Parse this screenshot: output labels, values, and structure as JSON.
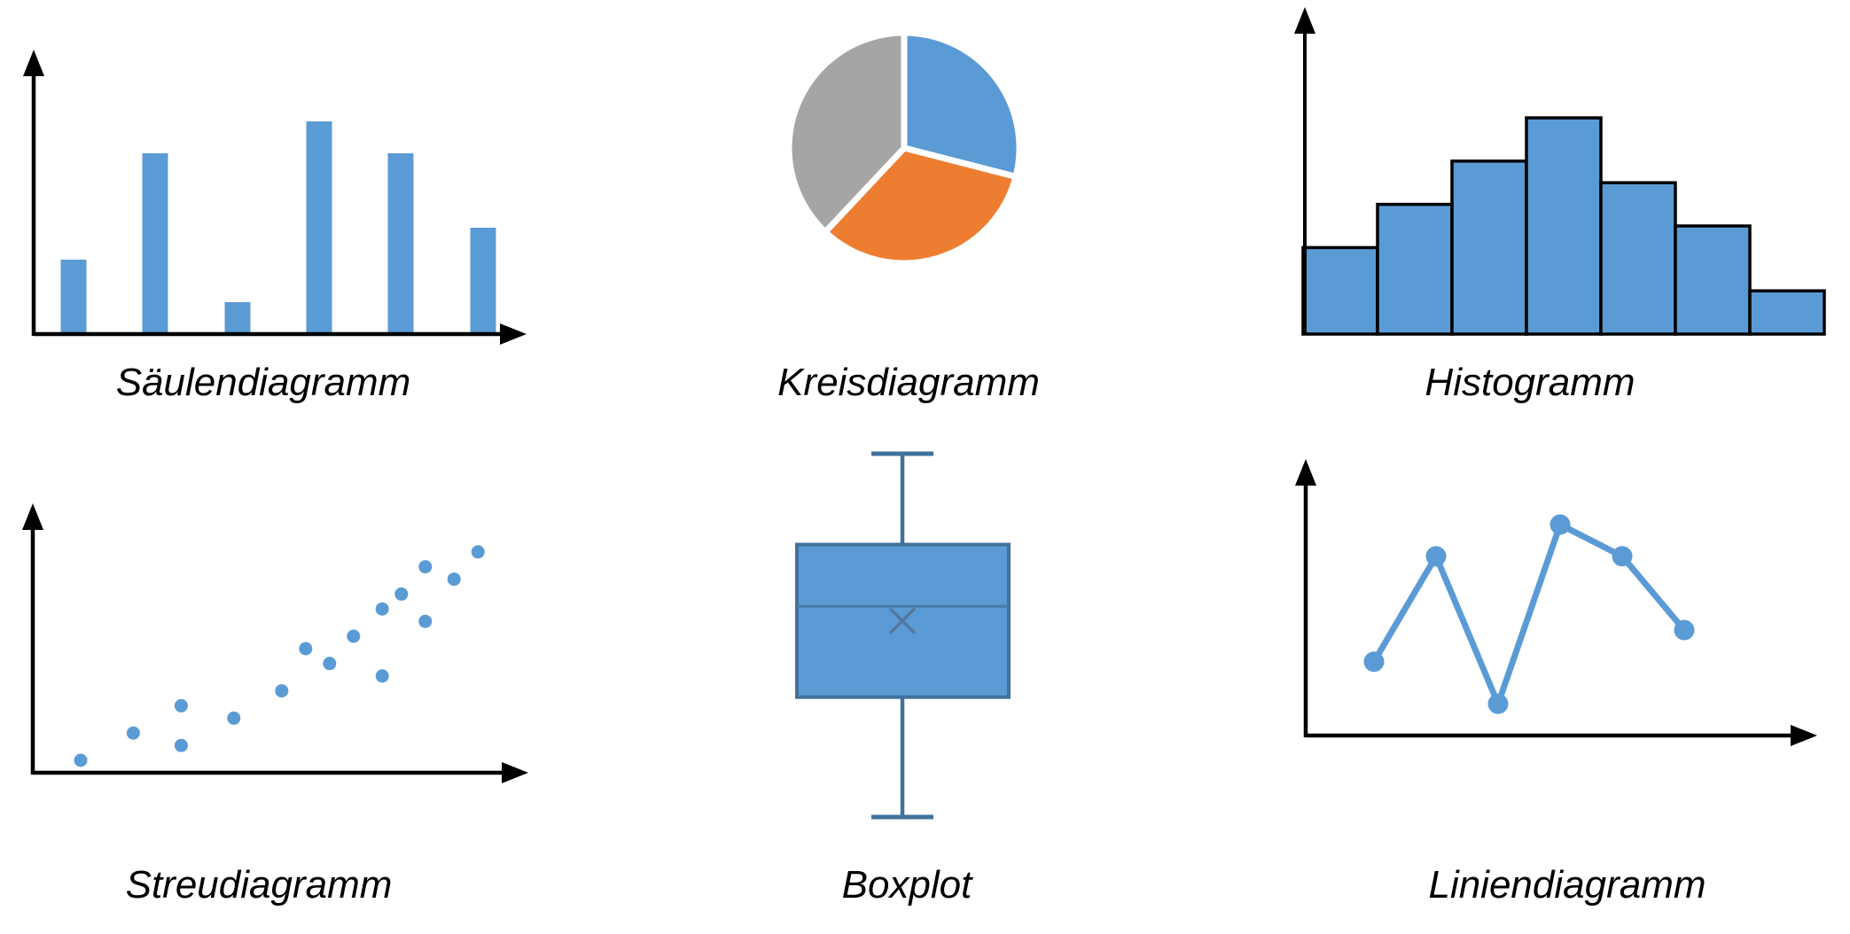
{
  "palette": {
    "blue": "#5B9BD5",
    "orange": "#ED7D31",
    "gray": "#A5A5A5",
    "axis": "#000000",
    "histogram_border": "#000000",
    "box_border": "#41719C",
    "median_line": "#4A79A6",
    "mean_marker": "#54789E",
    "pie_gap": "#FFFFFF",
    "background": "#FFFFFF"
  },
  "chart_data": [
    {
      "type": "bar",
      "title": "Säulendiagramm",
      "categories": [
        "",
        "",
        "",
        "",
        "",
        ""
      ],
      "values": [
        3.5,
        8.5,
        1.5,
        10,
        8.5,
        5
      ],
      "ylim": [
        0,
        12
      ],
      "xlabel": "",
      "ylabel": "",
      "grid": false,
      "color": "#5B9BD5",
      "axes": "arrow-x-and-y, unlabeled"
    },
    {
      "type": "pie",
      "title": "Kreisdiagramm",
      "slices": [
        {
          "value": 29,
          "color": "#5B9BD5"
        },
        {
          "value": 33,
          "color": "#ED7D31"
        },
        {
          "value": 38,
          "color": "#A5A5A5"
        }
      ],
      "start_angle_deg": 0,
      "gap_color": "#FFFFFF",
      "legend": "none"
    },
    {
      "type": "histogram",
      "title": "Histogramm",
      "values": [
        4,
        6,
        8,
        10,
        7,
        5,
        2
      ],
      "bins": 7,
      "ylim": [
        0,
        12
      ],
      "color": "#5B9BD5",
      "border_color": "#000000",
      "axes": "arrow-y-only, unlabeled"
    },
    {
      "type": "scatter",
      "title": "Streudiagramm",
      "points": [
        [
          1.0,
          0.5
        ],
        [
          2.1,
          1.6
        ],
        [
          3.1,
          1.1
        ],
        [
          3.1,
          2.7
        ],
        [
          4.2,
          2.2
        ],
        [
          5.2,
          3.3
        ],
        [
          5.7,
          5.0
        ],
        [
          6.2,
          4.4
        ],
        [
          6.7,
          5.5
        ],
        [
          7.3,
          3.9
        ],
        [
          7.3,
          6.6
        ],
        [
          7.7,
          7.2
        ],
        [
          8.2,
          6.1
        ],
        [
          8.2,
          8.3
        ],
        [
          8.8,
          7.8
        ],
        [
          9.3,
          8.9
        ]
      ],
      "xlim": [
        0,
        10
      ],
      "ylim": [
        0,
        10
      ],
      "trend": "positive correlation",
      "color": "#5B9BD5",
      "axes": "arrow-x-and-y, unlabeled"
    },
    {
      "type": "boxplot",
      "title": "Boxplot",
      "stats": {
        "min": 0,
        "q1": 3.3,
        "median": 5.8,
        "mean": 5.4,
        "q3": 7.5,
        "max": 10
      },
      "value_range": [
        0,
        10
      ],
      "orientation": "vertical",
      "fill": "#5B9BD5",
      "border": "#41719C"
    },
    {
      "type": "line",
      "title": "Liniendiagramm",
      "categories": [
        "",
        "",
        "",
        "",
        "",
        ""
      ],
      "values": [
        3.5,
        8.5,
        1.5,
        10,
        8.5,
        5
      ],
      "ylim": [
        0,
        12
      ],
      "markers": true,
      "color": "#5B9BD5",
      "axes": "arrow-x-and-y, unlabeled"
    }
  ]
}
